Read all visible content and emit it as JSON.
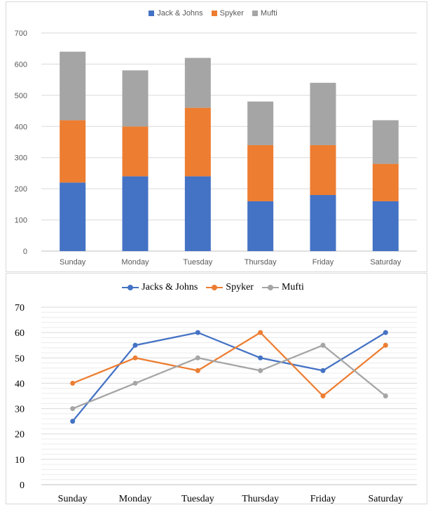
{
  "chart_data": [
    {
      "type": "bar",
      "stacked": true,
      "title": "",
      "xlabel": "",
      "ylabel": "",
      "ylim": [
        0,
        700
      ],
      "yticks": [
        0,
        100,
        200,
        300,
        400,
        500,
        600,
        700
      ],
      "categories": [
        "Sunday",
        "Monday",
        "Tuesday",
        "Thursday",
        "Friday",
        "Saturday"
      ],
      "series": [
        {
          "name": "Jack & Johns",
          "color": "#4472c4",
          "values": [
            220,
            240,
            240,
            160,
            180,
            160
          ]
        },
        {
          "name": "Spyker",
          "color": "#ed7d31",
          "values": [
            200,
            160,
            220,
            180,
            160,
            120
          ]
        },
        {
          "name": "Mufti",
          "color": "#a5a5a5",
          "values": [
            220,
            180,
            160,
            140,
            200,
            140
          ]
        }
      ],
      "legend": "top",
      "grid": true
    },
    {
      "type": "line",
      "title": "",
      "xlabel": "",
      "ylabel": "",
      "ylim": [
        0,
        70
      ],
      "yticks": [
        0,
        10,
        20,
        30,
        40,
        50,
        60,
        70
      ],
      "categories": [
        "Sunday",
        "Monday",
        "Tuesday",
        "Thursday",
        "Friday",
        "Saturday"
      ],
      "series": [
        {
          "name": "Jacks & Johns",
          "color": "#4472c4",
          "values": [
            25,
            55,
            60,
            50,
            45,
            60
          ]
        },
        {
          "name": "Spyker",
          "color": "#ed7d31",
          "values": [
            40,
            50,
            45,
            60,
            35,
            55
          ]
        },
        {
          "name": "Mufti",
          "color": "#a5a5a5",
          "values": [
            30,
            40,
            50,
            45,
            55,
            35
          ]
        }
      ],
      "legend": "top",
      "grid": true
    }
  ]
}
